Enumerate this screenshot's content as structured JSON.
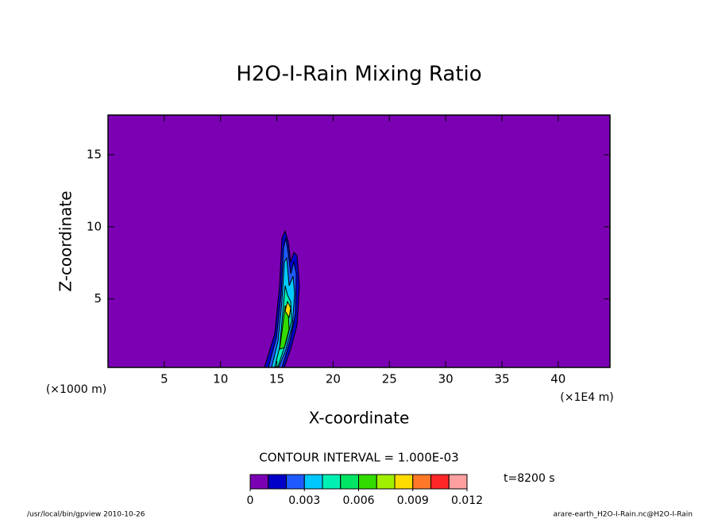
{
  "chart_data": {
    "type": "contour",
    "title": "H2O-I-Rain Mixing Ratio",
    "x_label": "X-coordinate",
    "y_label": "Z-coordinate",
    "x_unit": "(×1E4 m)",
    "y_unit": "(×1000 m)",
    "xlim": [
      0,
      44.6
    ],
    "xticks": [
      5,
      10,
      15,
      20,
      25,
      30,
      35,
      40
    ],
    "ylim": [
      0.25,
      17.75
    ],
    "yticks": [
      5,
      10,
      15
    ],
    "background_color": "#7b00b4",
    "contour_interval_label": "CONTOUR INTERVAL = 1.000E-03",
    "time_label": "t=8200 s",
    "colorbar": {
      "levels": [
        0,
        0.001,
        0.002,
        0.003,
        0.004,
        0.005,
        0.006,
        0.007,
        0.008,
        0.009,
        0.01,
        0.011,
        0.012
      ],
      "colors": [
        "#7b00b4",
        "#0000c8",
        "#1e5aff",
        "#00c8ff",
        "#00f0b4",
        "#00e664",
        "#32dc00",
        "#a0f000",
        "#ffdc00",
        "#ff7828",
        "#ff2828",
        "#ffa0a0"
      ],
      "ticks": [
        0,
        0.003,
        0.006,
        0.009,
        0.012
      ]
    },
    "footer_left": "/usr/local/bin/gpview  2010-10-26",
    "footer_right": "arare-earth_H2O-I-Rain.nc@H2O-I-Rain"
  }
}
